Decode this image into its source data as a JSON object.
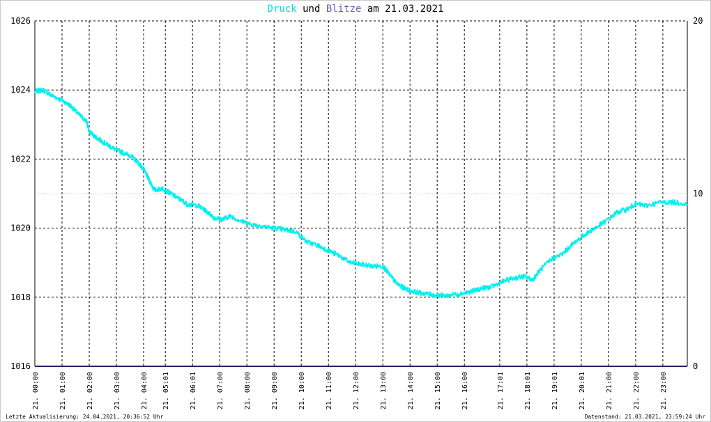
{
  "title": {
    "druck": "Druck",
    "und": "und",
    "blitze": "Blitze",
    "am": "am",
    "date": "21.03.2021"
  },
  "footer": {
    "left": "Letzte Aktualisierung: 24.04.2021, 20:36:52 Uhr",
    "right": "Datenstand: 21.03.2021, 23:59:24 Uhr"
  },
  "colors": {
    "pressure": "#00f0f0",
    "lightning": "#202070",
    "grid": "#000000",
    "gridMinor": "#c8c8c8"
  },
  "chart_data": {
    "type": "line",
    "x_unit": "hours",
    "xlim": [
      0,
      24
    ],
    "ylim": [
      1016,
      1026
    ],
    "y_ticks": [
      1016,
      1018,
      1020,
      1022,
      1024,
      1026
    ],
    "y2lim": [
      0,
      20
    ],
    "y2_ticks": [
      0,
      10,
      20
    ],
    "grid": true,
    "x_ticks": [
      {
        "x": 0.0,
        "label": "21. 00:00"
      },
      {
        "x": 1.0,
        "label": "21. 01:00"
      },
      {
        "x": 2.0,
        "label": "21. 02:00"
      },
      {
        "x": 3.0,
        "label": "21. 03:00"
      },
      {
        "x": 4.0,
        "label": "21. 04:00"
      },
      {
        "x": 4.8,
        "label": "21. 05:01"
      },
      {
        "x": 5.8,
        "label": "21. 06:01"
      },
      {
        "x": 6.8,
        "label": "21. 07:00"
      },
      {
        "x": 7.8,
        "label": "21. 08:00"
      },
      {
        "x": 8.8,
        "label": "21. 09:00"
      },
      {
        "x": 9.8,
        "label": "21. 10:00"
      },
      {
        "x": 10.8,
        "label": "21. 11:00"
      },
      {
        "x": 11.8,
        "label": "21. 12:00"
      },
      {
        "x": 12.8,
        "label": "21. 13:00"
      },
      {
        "x": 13.8,
        "label": "21. 14:00"
      },
      {
        "x": 14.8,
        "label": "21. 15:00"
      },
      {
        "x": 15.8,
        "label": "21. 16:00"
      },
      {
        "x": 17.1,
        "label": "21. 17:01"
      },
      {
        "x": 18.1,
        "label": "21. 18:01"
      },
      {
        "x": 19.1,
        "label": "21. 19:01"
      },
      {
        "x": 20.1,
        "label": "21. 20:01"
      },
      {
        "x": 21.1,
        "label": "21. 21:00"
      },
      {
        "x": 22.1,
        "label": "21. 22:00"
      },
      {
        "x": 23.1,
        "label": "21. 23:00"
      }
    ],
    "series": [
      {
        "name": "Druck",
        "points": [
          [
            0.0,
            1023.95
          ],
          [
            0.3,
            1024.0
          ],
          [
            0.6,
            1023.85
          ],
          [
            1.0,
            1023.7
          ],
          [
            1.3,
            1023.55
          ],
          [
            1.6,
            1023.3
          ],
          [
            1.9,
            1023.1
          ],
          [
            2.0,
            1022.8
          ],
          [
            2.3,
            1022.6
          ],
          [
            2.6,
            1022.45
          ],
          [
            2.9,
            1022.3
          ],
          [
            3.2,
            1022.2
          ],
          [
            3.5,
            1022.1
          ],
          [
            3.8,
            1021.9
          ],
          [
            4.0,
            1021.7
          ],
          [
            4.2,
            1021.4
          ],
          [
            4.4,
            1021.1
          ],
          [
            4.7,
            1021.15
          ],
          [
            5.0,
            1021.0
          ],
          [
            5.3,
            1020.85
          ],
          [
            5.6,
            1020.7
          ],
          [
            6.0,
            1020.65
          ],
          [
            6.3,
            1020.5
          ],
          [
            6.6,
            1020.3
          ],
          [
            6.9,
            1020.25
          ],
          [
            7.2,
            1020.35
          ],
          [
            7.6,
            1020.2
          ],
          [
            8.0,
            1020.1
          ],
          [
            8.4,
            1020.05
          ],
          [
            8.8,
            1020.0
          ],
          [
            9.2,
            1019.95
          ],
          [
            9.6,
            1019.9
          ],
          [
            10.0,
            1019.6
          ],
          [
            10.4,
            1019.5
          ],
          [
            10.8,
            1019.35
          ],
          [
            11.2,
            1019.2
          ],
          [
            11.6,
            1019.0
          ],
          [
            12.0,
            1018.95
          ],
          [
            12.4,
            1018.9
          ],
          [
            12.8,
            1018.9
          ],
          [
            13.0,
            1018.7
          ],
          [
            13.3,
            1018.4
          ],
          [
            13.6,
            1018.25
          ],
          [
            14.0,
            1018.15
          ],
          [
            14.4,
            1018.1
          ],
          [
            14.8,
            1018.05
          ],
          [
            15.2,
            1018.05
          ],
          [
            15.6,
            1018.1
          ],
          [
            16.0,
            1018.15
          ],
          [
            16.4,
            1018.25
          ],
          [
            16.8,
            1018.3
          ],
          [
            17.2,
            1018.45
          ],
          [
            17.6,
            1018.55
          ],
          [
            18.0,
            1018.6
          ],
          [
            18.3,
            1018.5
          ],
          [
            18.6,
            1018.8
          ],
          [
            19.0,
            1019.1
          ],
          [
            19.4,
            1019.25
          ],
          [
            19.8,
            1019.55
          ],
          [
            20.2,
            1019.8
          ],
          [
            20.6,
            1020.0
          ],
          [
            21.0,
            1020.2
          ],
          [
            21.4,
            1020.45
          ],
          [
            21.8,
            1020.55
          ],
          [
            22.1,
            1020.7
          ],
          [
            22.5,
            1020.65
          ],
          [
            23.0,
            1020.75
          ],
          [
            23.5,
            1020.75
          ],
          [
            24.0,
            1020.7
          ]
        ]
      },
      {
        "name": "Blitze",
        "axis": "right",
        "points": [
          [
            0.0,
            0
          ],
          [
            24.0,
            0
          ]
        ]
      }
    ]
  }
}
